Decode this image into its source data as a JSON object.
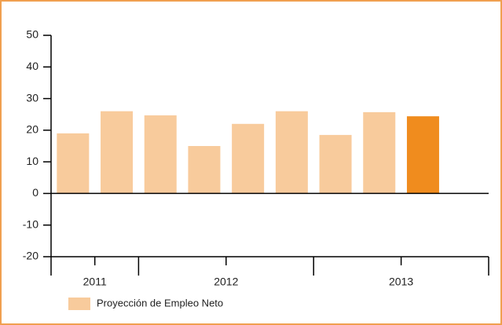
{
  "chart_data": {
    "type": "bar",
    "categories": [
      null,
      null,
      null,
      null,
      null,
      null,
      null,
      null,
      null,
      null
    ],
    "x_groups": [
      "2011",
      "2012",
      "2013"
    ],
    "x_group_sizes": [
      2,
      4,
      4
    ],
    "series": [
      {
        "name": "Proyección de Empleo Neto",
        "color": "#f8cb9c",
        "values": [
          19,
          26,
          24.7,
          15,
          22,
          26,
          18.5,
          25.7,
          24.4,
          null
        ],
        "colors": [
          "#f8cb9c",
          "#f8cb9c",
          "#f8cb9c",
          "#f8cb9c",
          "#f8cb9c",
          "#f8cb9c",
          "#f8cb9c",
          "#f8cb9c",
          "#f08c1e",
          "#f8cb9c"
        ]
      }
    ],
    "ylim": [
      -20,
      50
    ],
    "yticks": [
      -20,
      -10,
      0,
      10,
      20,
      30,
      40,
      50
    ]
  }
}
